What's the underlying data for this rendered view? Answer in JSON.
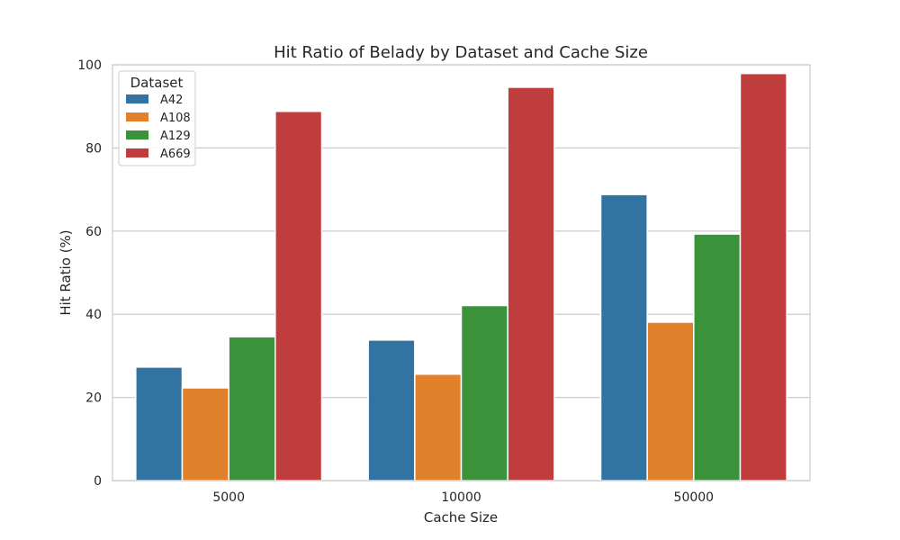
{
  "chart_data": {
    "type": "bar",
    "title": "Hit Ratio of Belady by Dataset and Cache Size",
    "xlabel": "Cache Size",
    "ylabel": "Hit Ratio (%)",
    "categories": [
      "5000",
      "10000",
      "50000"
    ],
    "ylim": [
      0,
      100
    ],
    "yticks": [
      0,
      20,
      40,
      60,
      80,
      100
    ],
    "grid": true,
    "legend": {
      "title": "Dataset",
      "placement": "top-left"
    },
    "series": [
      {
        "name": "A42",
        "color": "#3274a1",
        "values": [
          27.3,
          33.8,
          68.8
        ]
      },
      {
        "name": "A108",
        "color": "#e1812c",
        "values": [
          22.3,
          25.6,
          38.1
        ]
      },
      {
        "name": "A129",
        "color": "#3a923a",
        "values": [
          34.6,
          42.1,
          59.3
        ]
      },
      {
        "name": "A669",
        "color": "#c03d3e",
        "values": [
          88.8,
          94.6,
          97.9
        ]
      }
    ]
  }
}
